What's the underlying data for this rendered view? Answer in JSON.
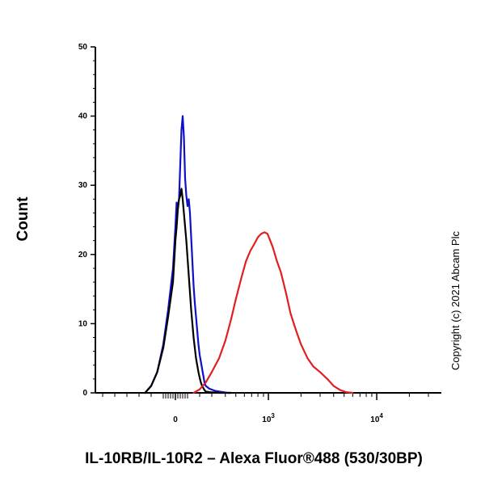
{
  "chart_data": {
    "type": "line",
    "xlabel": "IL-10RB/IL-10R2 – Alexa Fluor®488 (530/30BP)",
    "ylabel": "Count",
    "ylim": [
      0,
      50
    ],
    "yticks": [
      0,
      10,
      20,
      30,
      40,
      50
    ],
    "xscale": "biexponential",
    "xlim": [
      -700,
      30000
    ],
    "xticks": [
      {
        "value": 0,
        "label": "0",
        "exp": ""
      },
      {
        "value": 1000,
        "label": "10",
        "exp": "3"
      },
      {
        "value": 10000,
        "label": "10",
        "exp": "4"
      }
    ],
    "grid": false,
    "legend": "none",
    "annotation": "Copyright (c) 2021 Abcam Plc",
    "series": [
      {
        "color": "#1010c8",
        "x": [
          -250,
          -200,
          -150,
          -100,
          -60,
          -20,
          0,
          10,
          20,
          30,
          40,
          50,
          60,
          70,
          80,
          90,
          100,
          110,
          120,
          130,
          140,
          150,
          160,
          170,
          180,
          190,
          200,
          210,
          220,
          230,
          240,
          250,
          280,
          320,
          350,
          380,
          420,
          450
        ],
        "y": [
          0,
          1,
          3,
          7,
          12,
          18,
          24,
          27.5,
          27,
          28,
          33,
          38,
          40,
          37,
          31,
          28.5,
          27,
          28,
          26,
          22.5,
          19,
          15.5,
          13,
          11,
          9,
          7,
          5.5,
          4.5,
          3.5,
          2.5,
          1.5,
          1,
          0.6,
          0.3,
          0.2,
          0.1,
          0,
          0
        ]
      },
      {
        "color": "#000000",
        "x": [
          -250,
          -200,
          -150,
          -100,
          -60,
          -20,
          0,
          10,
          20,
          30,
          40,
          50,
          60,
          70,
          80,
          90,
          100,
          110,
          120,
          130,
          140,
          150,
          160,
          170,
          180,
          190,
          200,
          210,
          220,
          230,
          240,
          250,
          280,
          320,
          350,
          380,
          420,
          450
        ],
        "y": [
          0,
          1,
          3,
          6.5,
          11,
          16,
          22,
          24,
          26.5,
          28,
          28.5,
          29.5,
          28,
          26,
          24,
          22,
          19.5,
          17,
          14.5,
          12,
          10,
          8,
          6.5,
          5,
          4,
          3,
          2.2,
          1.5,
          1,
          0.7,
          0.4,
          0.2,
          0.1,
          0.05,
          0,
          0,
          0,
          0
        ]
      },
      {
        "color": "#e02020",
        "x": [
          150,
          200,
          250,
          300,
          350,
          400,
          450,
          500,
          560,
          620,
          680,
          740,
          800,
          860,
          920,
          980,
          1040,
          1100,
          1200,
          1300,
          1450,
          1600,
          1800,
          2000,
          2300,
          2600,
          3000,
          3500,
          4000,
          4600,
          5200,
          6000
        ],
        "y": [
          0,
          0.5,
          1.5,
          3,
          5,
          7.5,
          10.5,
          13.5,
          16.5,
          19,
          20.5,
          21.5,
          22.5,
          23,
          23.2,
          23,
          22,
          21,
          19,
          17.5,
          14.5,
          11.5,
          9,
          7,
          5,
          3.8,
          3,
          2,
          1,
          0.4,
          0.1,
          0
        ]
      }
    ]
  }
}
